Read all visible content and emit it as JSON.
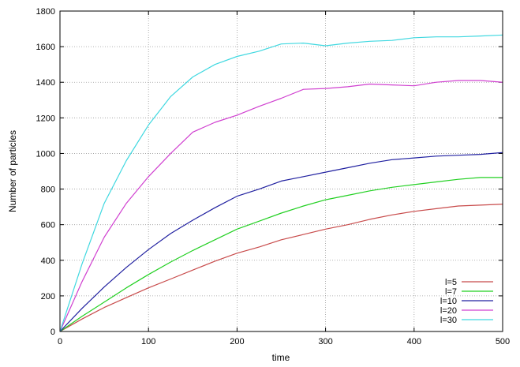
{
  "chart_data": {
    "type": "line",
    "title": "",
    "xlabel": "time",
    "ylabel": "Number of particles",
    "xlim": [
      0,
      500
    ],
    "ylim": [
      0,
      1800
    ],
    "x_ticks": [
      0,
      100,
      200,
      300,
      400,
      500
    ],
    "y_ticks": [
      0,
      200,
      400,
      600,
      800,
      1000,
      1200,
      1400,
      1600,
      1800
    ],
    "grid": true,
    "legend_position": "bottom-right",
    "x": [
      0,
      25,
      50,
      75,
      100,
      125,
      150,
      175,
      200,
      225,
      250,
      275,
      300,
      325,
      350,
      375,
      400,
      425,
      450,
      475,
      500
    ],
    "series": [
      {
        "name": "l=5",
        "color": "#c84b4b",
        "values": [
          0,
          70,
          135,
          190,
          245,
          295,
          345,
          395,
          440,
          475,
          515,
          545,
          575,
          600,
          630,
          655,
          675,
          690,
          705,
          710,
          715
        ]
      },
      {
        "name": "l=7",
        "color": "#22d022",
        "values": [
          0,
          85,
          165,
          245,
          320,
          390,
          455,
          515,
          575,
          620,
          665,
          705,
          740,
          765,
          790,
          810,
          825,
          840,
          855,
          865,
          865
        ]
      },
      {
        "name": "l=10",
        "color": "#2020a0",
        "values": [
          0,
          130,
          250,
          360,
          460,
          550,
          625,
          695,
          760,
          800,
          845,
          870,
          895,
          920,
          945,
          965,
          975,
          985,
          990,
          995,
          1005
        ]
      },
      {
        "name": "l=20",
        "color": "#d040d0",
        "values": [
          0,
          280,
          530,
          720,
          870,
          1000,
          1120,
          1175,
          1215,
          1265,
          1310,
          1360,
          1365,
          1375,
          1390,
          1385,
          1380,
          1400,
          1410,
          1410,
          1400
        ]
      },
      {
        "name": "l=30",
        "color": "#40d8e0",
        "values": [
          0,
          380,
          720,
          960,
          1160,
          1320,
          1430,
          1500,
          1545,
          1575,
          1615,
          1620,
          1605,
          1620,
          1630,
          1635,
          1650,
          1655,
          1655,
          1660,
          1665
        ]
      }
    ]
  }
}
